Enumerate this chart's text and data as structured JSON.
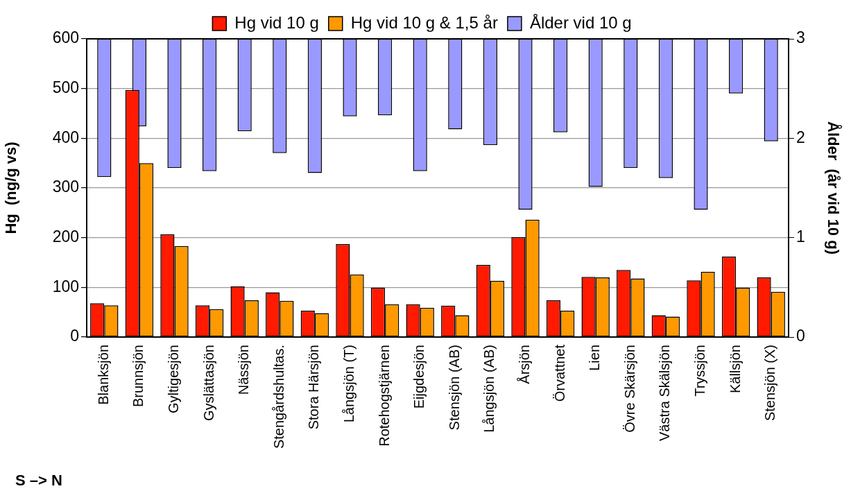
{
  "chart_data": {
    "type": "bar",
    "categories": [
      "Blanksjön",
      "Brunnsjön",
      "Gyltigesjön",
      "Gyslättasjön",
      "Nässjön",
      "Stengårdshultas.",
      "Stora Härsjön",
      "Långsjön (T)",
      "Rotehogstjärnen",
      "Eijgdesjön",
      "Stensjön (AB)",
      "Långsjön (AB)",
      "Årsjön",
      "Örvattnet",
      "Lien",
      "Övre Skärsjön",
      "Västra Skälsjön",
      "Tryssjön",
      "Källsjön",
      "Stensjön (X)"
    ],
    "series": [
      {
        "name": "Hg vid 10 g",
        "color": "#ff1a00",
        "values": [
          68,
          497,
          207,
          64,
          102,
          90,
          53,
          187,
          99,
          66,
          63,
          145,
          201,
          74,
          121,
          135,
          44,
          114,
          162,
          120
        ]
      },
      {
        "name": "Hg vid 10 g & 1,5 år",
        "color": "#ff9900",
        "values": [
          64,
          350,
          183,
          56,
          74,
          73,
          48,
          126,
          66,
          59,
          44,
          113,
          236,
          53,
          120,
          118,
          41,
          131,
          99,
          91
        ]
      },
      {
        "name": "Ålder vid 10 g",
        "color": "#9999ff",
        "axis": "y2",
        "base": [
          3,
          3,
          3,
          3,
          3,
          3,
          3,
          3,
          3,
          3,
          3,
          3,
          3,
          3,
          3,
          3,
          3,
          3,
          3,
          3
        ],
        "values": [
          -1.39,
          -0.88,
          -1.3,
          -1.33,
          -0.93,
          -1.15,
          -1.35,
          -0.78,
          -0.77,
          -1.33,
          -0.91,
          -1.07,
          -1.72,
          -0.94,
          -1.49,
          -1.3,
          -1.4,
          -1.72,
          -0.55,
          -1.03
        ]
      }
    ],
    "ylabel": "Hg  (ng/g vs)",
    "y2label": "Ålder  (år vid 10 g)",
    "ylim": [
      0,
      600
    ],
    "yticks": [
      0,
      100,
      200,
      300,
      400,
      500,
      600
    ],
    "y2lim": [
      0,
      3
    ],
    "y2ticks": [
      0,
      1,
      2,
      3
    ],
    "grid": "y",
    "legend": "top",
    "annotations": [
      "S –> N"
    ]
  }
}
